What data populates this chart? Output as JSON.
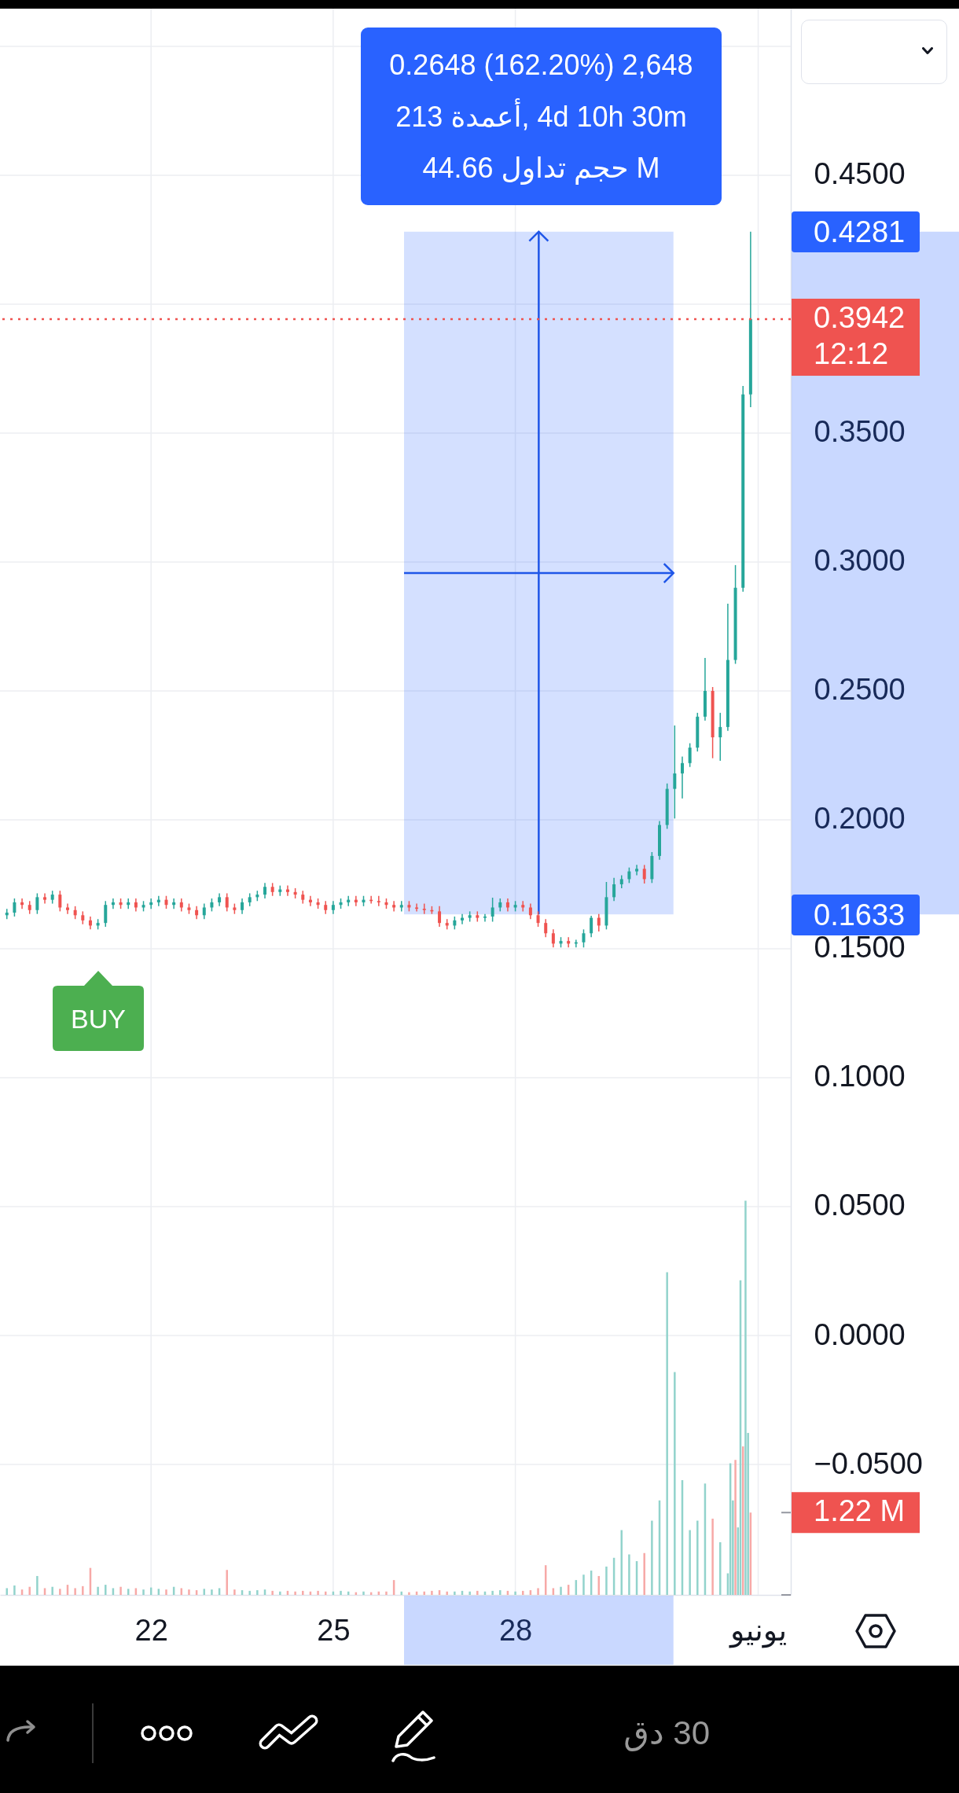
{
  "chart_data": {
    "type": "candlestick",
    "x": [
      "--05-19T15:00",
      "--05-19T18:00",
      "--05-19T21:00",
      "--05-20T00:00",
      "--05-20T03:00",
      "--05-20T06:00",
      "--05-20T09:00",
      "--05-20T12:00",
      "--05-20T15:00",
      "--05-20T18:00",
      "--05-20T21:00",
      "--05-21T00:00",
      "--05-21T03:00",
      "--05-21T06:00",
      "--05-21T09:00",
      "--05-21T12:00",
      "--05-21T15:00",
      "--05-21T18:00",
      "--05-21T21:00",
      "--05-22T00:00",
      "--05-22T03:00",
      "--05-22T06:00",
      "--05-22T09:00",
      "--05-22T12:00",
      "--05-22T15:00",
      "--05-22T18:00",
      "--05-22T21:00",
      "--05-23T00:00",
      "--05-23T03:00",
      "--05-23T06:00",
      "--05-23T09:00",
      "--05-23T12:00",
      "--05-23T15:00",
      "--05-23T18:00",
      "--05-23T21:00",
      "--05-24T00:00",
      "--05-24T03:00",
      "--05-24T06:00",
      "--05-24T09:00",
      "--05-24T12:00",
      "--05-24T15:00",
      "--05-24T18:00",
      "--05-24T21:00",
      "--05-25T00:00",
      "--05-25T03:00",
      "--05-25T06:00",
      "--05-25T09:00",
      "--05-25T12:00",
      "--05-25T15:00",
      "--05-25T18:00",
      "--05-25T21:00",
      "--05-26T00:00",
      "--05-26T03:00",
      "--05-26T06:00",
      "--05-26T09:00",
      "--05-26T12:00",
      "--05-26T15:00",
      "--05-26T18:00",
      "--05-26T21:00",
      "--05-27T00:00",
      "--05-27T03:00",
      "--05-27T06:00",
      "--05-27T09:00",
      "--05-27T12:00",
      "--05-27T15:00",
      "--05-27T18:00",
      "--05-27T21:00",
      "--05-28T00:00",
      "--05-28T03:00",
      "--05-28T06:00",
      "--05-28T09:00",
      "--05-28T12:00",
      "--05-28T15:00",
      "--05-28T18:00",
      "--05-28T21:00",
      "--05-29T00:00",
      "--05-29T03:00",
      "--05-29T06:00",
      "--05-29T09:00",
      "--05-29T12:00",
      "--05-29T15:00",
      "--05-29T18:00",
      "--05-29T21:00",
      "--05-30T00:00",
      "--05-30T03:00",
      "--05-30T06:00",
      "--05-30T09:00",
      "--05-30T12:00",
      "--05-30T15:00",
      "--05-30T18:00",
      "--05-30T21:00",
      "--05-31T00:00",
      "--05-31T03:00",
      "--05-31T06:00",
      "--05-31T09:00",
      "--05-31T12:00",
      "--05-31T15:00",
      "--05-31T18:00",
      "--05-31T21:00"
    ],
    "ohlc": [
      [
        0.163,
        0.1655,
        0.1615,
        0.164
      ],
      [
        0.164,
        0.1695,
        0.1625,
        0.168
      ],
      [
        0.168,
        0.1695,
        0.1655,
        0.167
      ],
      [
        0.167,
        0.1685,
        0.1635,
        0.165
      ],
      [
        0.165,
        0.1715,
        0.1635,
        0.17
      ],
      [
        0.17,
        0.1715,
        0.1675,
        0.169
      ],
      [
        0.169,
        0.1725,
        0.1675,
        0.171
      ],
      [
        0.171,
        0.1725,
        0.1645,
        0.166
      ],
      [
        0.166,
        0.1675,
        0.1635,
        0.165
      ],
      [
        0.165,
        0.1665,
        0.1615,
        0.163
      ],
      [
        0.163,
        0.1645,
        0.1595,
        0.161
      ],
      [
        0.161,
        0.1625,
        0.1575,
        0.159
      ],
      [
        0.159,
        0.1615,
        0.1575,
        0.16
      ],
      [
        0.16,
        0.1685,
        0.1585,
        0.167
      ],
      [
        0.167,
        0.1695,
        0.1655,
        0.168
      ],
      [
        0.168,
        0.1695,
        0.1655,
        0.167
      ],
      [
        0.167,
        0.1695,
        0.1655,
        0.168
      ],
      [
        0.168,
        0.1695,
        0.1645,
        0.166
      ],
      [
        0.166,
        0.1685,
        0.1645,
        0.167
      ],
      [
        0.167,
        0.1695,
        0.1655,
        0.168
      ],
      [
        0.168,
        0.1705,
        0.1665,
        0.169
      ],
      [
        0.169,
        0.1705,
        0.1655,
        0.167
      ],
      [
        0.167,
        0.1695,
        0.1655,
        0.168
      ],
      [
        0.168,
        0.1695,
        0.1645,
        0.166
      ],
      [
        0.166,
        0.1675,
        0.1635,
        0.165
      ],
      [
        0.165,
        0.1665,
        0.1615,
        0.163
      ],
      [
        0.163,
        0.1675,
        0.1615,
        0.166
      ],
      [
        0.166,
        0.1695,
        0.1645,
        0.168
      ],
      [
        0.168,
        0.1715,
        0.1665,
        0.17
      ],
      [
        0.17,
        0.1715,
        0.1645,
        0.166
      ],
      [
        0.166,
        0.1675,
        0.1635,
        0.165
      ],
      [
        0.165,
        0.1695,
        0.1635,
        0.168
      ],
      [
        0.168,
        0.1715,
        0.1665,
        0.17
      ],
      [
        0.17,
        0.1725,
        0.1685,
        0.171
      ],
      [
        0.171,
        0.1755,
        0.1695,
        0.174
      ],
      [
        0.174,
        0.1755,
        0.1705,
        0.172
      ],
      [
        0.172,
        0.1745,
        0.1705,
        0.173
      ],
      [
        0.173,
        0.1745,
        0.1705,
        0.172
      ],
      [
        0.172,
        0.1735,
        0.1695,
        0.171
      ],
      [
        0.171,
        0.1725,
        0.1675,
        0.169
      ],
      [
        0.169,
        0.1705,
        0.1665,
        0.168
      ],
      [
        0.168,
        0.1695,
        0.1655,
        0.167
      ],
      [
        0.167,
        0.1685,
        0.1635,
        0.165
      ],
      [
        0.165,
        0.1685,
        0.1635,
        0.167
      ],
      [
        0.167,
        0.1695,
        0.1655,
        0.168
      ],
      [
        0.168,
        0.1705,
        0.1665,
        0.169
      ],
      [
        0.169,
        0.1705,
        0.1665,
        0.168
      ],
      [
        0.168,
        0.1705,
        0.1665,
        0.169
      ],
      [
        0.169,
        0.1705,
        0.1675,
        0.1685
      ],
      [
        0.1685,
        0.1705,
        0.1665,
        0.168
      ],
      [
        0.168,
        0.1695,
        0.1655,
        0.167
      ],
      [
        0.167,
        0.1685,
        0.1645,
        0.166
      ],
      [
        0.166,
        0.1685,
        0.1645,
        0.167
      ],
      [
        0.167,
        0.1685,
        0.1645,
        0.166
      ],
      [
        0.166,
        0.1675,
        0.1645,
        0.1655
      ],
      [
        0.1655,
        0.1675,
        0.1635,
        0.165
      ],
      [
        0.165,
        0.1665,
        0.1635,
        0.1645
      ],
      [
        0.1645,
        0.1665,
        0.1585,
        0.16
      ],
      [
        0.16,
        0.1615,
        0.1575,
        0.159
      ],
      [
        0.159,
        0.1625,
        0.1575,
        0.161
      ],
      [
        0.161,
        0.1635,
        0.1595,
        0.162
      ],
      [
        0.162,
        0.1645,
        0.1605,
        0.163
      ],
      [
        0.163,
        0.1645,
        0.1605,
        0.162
      ],
      [
        0.162,
        0.1635,
        0.1605,
        0.1625
      ],
      [
        0.1625,
        0.1698,
        0.1605,
        0.166
      ],
      [
        0.166,
        0.1695,
        0.1645,
        0.168
      ],
      [
        0.168,
        0.1695,
        0.1645,
        0.166
      ],
      [
        0.166,
        0.1685,
        0.1645,
        0.167
      ],
      [
        0.167,
        0.1685,
        0.1645,
        0.166
      ],
      [
        0.166,
        0.1675,
        0.1615,
        0.163
      ],
      [
        0.163,
        0.1645,
        0.1585,
        0.16
      ],
      [
        0.16,
        0.1615,
        0.1545,
        0.156
      ],
      [
        0.156,
        0.1575,
        0.1505,
        0.152
      ],
      [
        0.152,
        0.1545,
        0.1505,
        0.153
      ],
      [
        0.153,
        0.1545,
        0.1505,
        0.152
      ],
      [
        0.152,
        0.1535,
        0.1505,
        0.1525
      ],
      [
        0.1525,
        0.1575,
        0.1505,
        0.156
      ],
      [
        0.156,
        0.1628,
        0.1545,
        0.162
      ],
      [
        0.162,
        0.1635,
        0.1567,
        0.159
      ],
      [
        0.159,
        0.1759,
        0.1575,
        0.17
      ],
      [
        0.17,
        0.1775,
        0.1685,
        0.175
      ],
      [
        0.175,
        0.1785,
        0.1735,
        0.177
      ],
      [
        0.177,
        0.1815,
        0.1755,
        0.18
      ],
      [
        0.18,
        0.1825,
        0.1785,
        0.181
      ],
      [
        0.181,
        0.1825,
        0.1753,
        0.177
      ],
      [
        0.177,
        0.1875,
        0.1755,
        0.186
      ],
      [
        0.186,
        0.1995,
        0.1845,
        0.198
      ],
      [
        0.198,
        0.2141,
        0.1965,
        0.212
      ],
      [
        0.212,
        0.2366,
        0.2005,
        0.218
      ],
      [
        0.218,
        0.2245,
        0.2083,
        0.222
      ],
      [
        0.222,
        0.2297,
        0.2205,
        0.228
      ],
      [
        0.228,
        0.2415,
        0.2265,
        0.24
      ],
      [
        0.24,
        0.2628,
        0.2385,
        0.25
      ],
      [
        0.25,
        0.2515,
        0.2239,
        0.232
      ],
      [
        0.232,
        0.2415,
        0.2229,
        0.236
      ],
      [
        0.236,
        0.2838,
        0.2345,
        0.262
      ],
      [
        0.262,
        0.2988,
        0.2605,
        0.29
      ],
      [
        0.29,
        0.3683,
        0.2885,
        0.365
      ],
      [
        0.365,
        0.4281,
        0.36,
        0.3942
      ]
    ],
    "colors": [
      "#26a69a",
      "#26a69a",
      "#ef5350",
      "#ef5350",
      "#26a69a",
      "#ef5350",
      "#26a69a",
      "#ef5350",
      "#ef5350",
      "#ef5350",
      "#ef5350",
      "#ef5350",
      "#26a69a",
      "#26a69a",
      "#26a69a",
      "#ef5350",
      "#26a69a",
      "#ef5350",
      "#26a69a",
      "#26a69a",
      "#26a69a",
      "#ef5350",
      "#26a69a",
      "#ef5350",
      "#ef5350",
      "#ef5350",
      "#26a69a",
      "#26a69a",
      "#26a69a",
      "#ef5350",
      "#ef5350",
      "#26a69a",
      "#26a69a",
      "#26a69a",
      "#26a69a",
      "#ef5350",
      "#26a69a",
      "#ef5350",
      "#ef5350",
      "#ef5350",
      "#ef5350",
      "#ef5350",
      "#ef5350",
      "#26a69a",
      "#26a69a",
      "#26a69a",
      "#ef5350",
      "#26a69a",
      "#ef5350",
      "#ef5350",
      "#ef5350",
      "#ef5350",
      "#26a69a",
      "#ef5350",
      "#ef5350",
      "#ef5350",
      "#ef5350",
      "#ef5350",
      "#ef5350",
      "#26a69a",
      "#26a69a",
      "#26a69a",
      "#ef5350",
      "#26a69a",
      "#26a69a",
      "#26a69a",
      "#ef5350",
      "#26a69a",
      "#ef5350",
      "#ef5350",
      "#ef5350",
      "#ef5350",
      "#ef5350",
      "#26a69a",
      "#ef5350",
      "#26a69a",
      "#26a69a",
      "#26a69a",
      "#ef5350",
      "#26a69a",
      "#26a69a",
      "#26a69a",
      "#26a69a",
      "#26a69a",
      "#ef5350",
      "#26a69a",
      "#26a69a",
      "#26a69a",
      "#26a69a",
      "#26a69a",
      "#26a69a",
      "#26a69a",
      "#26a69a",
      "#ef5350",
      "#26a69a",
      "#26a69a",
      "#26a69a",
      "#26a69a",
      "#26a69a"
    ],
    "series": [
      {
        "type": "bar",
        "axis": "y2",
        "x": [
          "--05-19T15:00",
          "--05-19T18:00",
          "--05-19T21:00",
          "--05-20T00:00",
          "--05-20T03:00",
          "--05-20T06:00",
          "--05-20T09:00",
          "--05-20T12:00",
          "--05-20T15:00",
          "--05-20T18:00",
          "--05-20T21:00",
          "--05-21T00:00",
          "--05-21T03:00",
          "--05-21T06:00",
          "--05-21T09:00",
          "--05-21T12:00",
          "--05-21T15:00",
          "--05-21T18:00",
          "--05-21T21:00",
          "--05-22T00:00",
          "--05-22T03:00",
          "--05-22T06:00",
          "--05-22T09:00",
          "--05-22T12:00",
          "--05-22T15:00",
          "--05-22T18:00",
          "--05-22T21:00",
          "--05-23T00:00",
          "--05-23T03:00",
          "--05-23T06:00",
          "--05-23T09:00",
          "--05-23T12:00",
          "--05-23T15:00",
          "--05-23T18:00",
          "--05-23T21:00",
          "--05-24T00:00",
          "--05-24T03:00",
          "--05-24T06:00",
          "--05-24T09:00",
          "--05-24T12:00",
          "--05-24T15:00",
          "--05-24T18:00",
          "--05-24T21:00",
          "--05-25T00:00",
          "--05-25T03:00",
          "--05-25T06:00",
          "--05-25T09:00",
          "--05-25T12:00",
          "--05-25T15:00",
          "--05-25T18:00",
          "--05-25T21:00",
          "--05-26T00:00",
          "--05-26T03:00",
          "--05-26T06:00",
          "--05-26T09:00",
          "--05-26T12:00",
          "--05-26T15:00",
          "--05-26T18:00",
          "--05-26T21:00",
          "--05-27T00:00",
          "--05-27T03:00",
          "--05-27T06:00",
          "--05-27T09:00",
          "--05-27T12:00",
          "--05-27T15:00",
          "--05-27T18:00",
          "--05-27T21:00",
          "--05-28T00:00",
          "--05-28T03:00",
          "--05-28T06:00",
          "--05-28T09:00",
          "--05-28T12:00",
          "--05-28T15:00",
          "--05-28T18:00",
          "--05-28T21:00",
          "--05-29T00:00",
          "--05-29T03:00",
          "--05-29T06:00",
          "--05-29T09:00",
          "--05-29T12:00",
          "--05-29T15:00",
          "--05-29T18:00",
          "--05-29T21:00",
          "--05-30T00:00",
          "--05-30T03:00",
          "--05-30T06:00",
          "--05-30T09:00",
          "--05-30T12:00",
          "--05-30T15:00",
          "--05-30T18:00",
          "--05-30T21:00",
          "--05-31T00:00",
          "--05-31T03:00",
          "--05-31T06:00",
          "--05-31T09:00",
          "--05-31T12:00",
          "--05-31T13:00",
          "--05-31T14:00",
          "--05-31T15:00",
          "--05-31T16:00",
          "--05-31T17:00",
          "--05-31T18:00",
          "--05-31T19:00",
          "--05-31T20:00",
          "--05-31T21:00"
        ],
        "values": [
          0.1,
          0.14,
          0.08,
          0.12,
          0.28,
          0.1,
          0.12,
          0.09,
          0.15,
          0.1,
          0.13,
          0.4,
          0.12,
          0.15,
          0.1,
          0.12,
          0.09,
          0.1,
          0.08,
          0.11,
          0.09,
          0.08,
          0.12,
          0.1,
          0.08,
          0.07,
          0.09,
          0.08,
          0.1,
          0.37,
          0.08,
          0.07,
          0.06,
          0.07,
          0.08,
          0.06,
          0.05,
          0.06,
          0.05,
          0.06,
          0.05,
          0.06,
          0.05,
          0.05,
          0.06,
          0.05,
          0.04,
          0.05,
          0.04,
          0.05,
          0.05,
          0.22,
          0.05,
          0.04,
          0.05,
          0.05,
          0.06,
          0.07,
          0.05,
          0.05,
          0.06,
          0.05,
          0.06,
          0.05,
          0.06,
          0.07,
          0.06,
          0.05,
          0.06,
          0.07,
          0.1,
          0.44,
          0.1,
          0.12,
          0.15,
          0.22,
          0.3,
          0.36,
          0.28,
          0.42,
          0.55,
          0.96,
          0.6,
          0.5,
          0.62,
          1.1,
          1.4,
          4.78,
          3.3,
          1.7,
          0.96,
          1.1,
          1.65,
          1.13,
          0.78,
          0.32,
          1.95,
          1.4,
          2.0,
          1.0,
          4.66,
          2.2,
          5.84,
          2.4,
          1.22
        ],
        "colors": [
          "#92d3cc",
          "#92d3cc",
          "#f7a9a7",
          "#f7a9a7",
          "#92d3cc",
          "#f7a9a7",
          "#92d3cc",
          "#f7a9a7",
          "#f7a9a7",
          "#f7a9a7",
          "#f7a9a7",
          "#f7a9a7",
          "#92d3cc",
          "#92d3cc",
          "#92d3cc",
          "#f7a9a7",
          "#92d3cc",
          "#f7a9a7",
          "#92d3cc",
          "#92d3cc",
          "#92d3cc",
          "#f7a9a7",
          "#92d3cc",
          "#f7a9a7",
          "#f7a9a7",
          "#f7a9a7",
          "#92d3cc",
          "#92d3cc",
          "#92d3cc",
          "#f7a9a7",
          "#f7a9a7",
          "#92d3cc",
          "#92d3cc",
          "#92d3cc",
          "#92d3cc",
          "#f7a9a7",
          "#92d3cc",
          "#f7a9a7",
          "#f7a9a7",
          "#f7a9a7",
          "#f7a9a7",
          "#f7a9a7",
          "#f7a9a7",
          "#92d3cc",
          "#92d3cc",
          "#92d3cc",
          "#f7a9a7",
          "#92d3cc",
          "#f7a9a7",
          "#f7a9a7",
          "#f7a9a7",
          "#f7a9a7",
          "#92d3cc",
          "#f7a9a7",
          "#f7a9a7",
          "#f7a9a7",
          "#f7a9a7",
          "#f7a9a7",
          "#f7a9a7",
          "#92d3cc",
          "#92d3cc",
          "#92d3cc",
          "#f7a9a7",
          "#92d3cc",
          "#92d3cc",
          "#92d3cc",
          "#f7a9a7",
          "#92d3cc",
          "#f7a9a7",
          "#f7a9a7",
          "#f7a9a7",
          "#f7a9a7",
          "#f7a9a7",
          "#92d3cc",
          "#f7a9a7",
          "#92d3cc",
          "#92d3cc",
          "#92d3cc",
          "#f7a9a7",
          "#92d3cc",
          "#92d3cc",
          "#92d3cc",
          "#92d3cc",
          "#92d3cc",
          "#f7a9a7",
          "#92d3cc",
          "#92d3cc",
          "#92d3cc",
          "#92d3cc",
          "#92d3cc",
          "#92d3cc",
          "#92d3cc",
          "#92d3cc",
          "#f7a9a7",
          "#92d3cc",
          "#92d3cc",
          "#92d3cc",
          "#92d3cc",
          "#f7a9a7",
          "#92d3cc",
          "#92d3cc",
          "#f7a9a7",
          "#92d3cc",
          "#92d3cc",
          "#f7a9a7"
        ]
      },
      {
        "type": "line",
        "x": [
          "--05-26T04:00",
          "--05-30T14:30"
        ],
        "values": [
          null,
          null
        ],
        "lower": [
          0.1633,
          0.1633
        ],
        "upper": [
          0.4281,
          0.4281
        ],
        "color": "#2962ff"
      }
    ],
    "xlim": [
      "--05-19T13:50",
      "--06-01T11:20"
    ],
    "xticks": [
      {
        "value": "--05-22",
        "label": "22"
      },
      {
        "value": "--05-25",
        "label": "25"
      },
      {
        "value": "--05-28",
        "label": "28"
      },
      {
        "value": "--06-01",
        "label": "يونيو"
      }
    ],
    "ylim": [
      -0.1006,
      0.5146
    ],
    "yticks": [
      {
        "value": 0.5,
        "label": null
      },
      {
        "value": 0.45,
        "label": "0.4500"
      },
      {
        "value": 0.4,
        "label": null
      },
      {
        "value": 0.35,
        "label": "0.3500"
      },
      {
        "value": 0.3,
        "label": "0.3000"
      },
      {
        "value": 0.25,
        "label": "0.2500"
      },
      {
        "value": 0.2,
        "label": "0.2000"
      },
      {
        "value": 0.15,
        "label": "0.1500"
      },
      {
        "value": 0.1,
        "label": "0.1000"
      },
      {
        "value": 0.05,
        "label": "0.0500"
      },
      {
        "value": 0,
        "label": "0.0000"
      },
      {
        "value": -0.05,
        "label": "−0.0500"
      }
    ],
    "y2lim": [
      0,
      23.5
    ],
    "y2ticks": [
      {
        "value": 0,
        "label": null
      },
      {
        "value": 1.22,
        "label": "1.22 M"
      }
    ],
    "grid": true,
    "ref_lines": [
      {
        "axis": "y",
        "value": 0.3942,
        "label": "0.3942\n12:12",
        "color": "#ef5350",
        "line_style": "dotted"
      }
    ],
    "annotations": [
      "0.2648 (162.20%) 2,648",
      "213 أعمدة, 4d 10h 30m",
      "حجم تداول 44.66 M",
      "0.4281",
      "0.1633",
      "BUY",
      "30 دق"
    ]
  }
}
